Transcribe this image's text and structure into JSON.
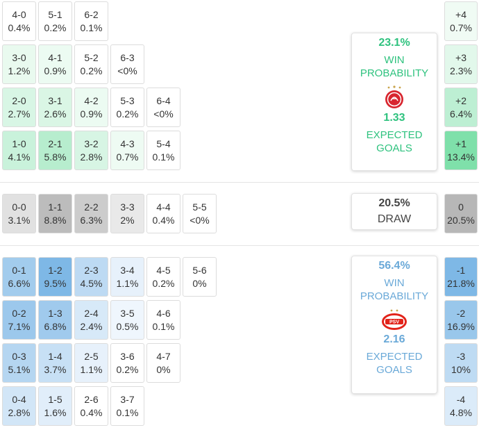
{
  "colors": {
    "home_accent": "#2ec27e",
    "away_accent": "#6aa9d8",
    "draw_accent": "#444444"
  },
  "home": {
    "win_pct": "23.1%",
    "win_label": "WIN PROBABILITY",
    "logo_icon": "olympiacos-crest-icon",
    "xg": "1.33",
    "xg_label": "EXPECTED GOALS"
  },
  "draw": {
    "pct": "20.5%",
    "label": "DRAW"
  },
  "away": {
    "win_pct": "56.4%",
    "win_label": "WIN PROBABILITY",
    "logo_icon": "psv-crest-icon",
    "xg": "2.16",
    "xg_label": "EXPECTED GOALS"
  },
  "home_rows": [
    [
      {
        "score": "4-0",
        "prob": "0.4%"
      },
      {
        "score": "5-1",
        "prob": "0.2%"
      },
      {
        "score": "6-2",
        "prob": "0.1%"
      }
    ],
    [
      {
        "score": "3-0",
        "prob": "1.2%"
      },
      {
        "score": "4-1",
        "prob": "0.9%"
      },
      {
        "score": "5-2",
        "prob": "0.2%"
      },
      {
        "score": "6-3",
        "prob": "<0%"
      }
    ],
    [
      {
        "score": "2-0",
        "prob": "2.7%"
      },
      {
        "score": "3-1",
        "prob": "2.6%"
      },
      {
        "score": "4-2",
        "prob": "0.9%"
      },
      {
        "score": "5-3",
        "prob": "0.2%"
      },
      {
        "score": "6-4",
        "prob": "<0%"
      }
    ],
    [
      {
        "score": "1-0",
        "prob": "4.1%"
      },
      {
        "score": "2-1",
        "prob": "5.8%"
      },
      {
        "score": "3-2",
        "prob": "2.8%"
      },
      {
        "score": "4-3",
        "prob": "0.7%"
      },
      {
        "score": "5-4",
        "prob": "0.1%"
      }
    ]
  ],
  "draw_row": [
    {
      "score": "0-0",
      "prob": "3.1%"
    },
    {
      "score": "1-1",
      "prob": "8.8%"
    },
    {
      "score": "2-2",
      "prob": "6.3%"
    },
    {
      "score": "3-3",
      "prob": "2%"
    },
    {
      "score": "4-4",
      "prob": "0.4%"
    },
    {
      "score": "5-5",
      "prob": "<0%"
    }
  ],
  "away_rows": [
    [
      {
        "score": "0-1",
        "prob": "6.6%"
      },
      {
        "score": "1-2",
        "prob": "9.5%"
      },
      {
        "score": "2-3",
        "prob": "4.5%"
      },
      {
        "score": "3-4",
        "prob": "1.1%"
      },
      {
        "score": "4-5",
        "prob": "0.2%"
      },
      {
        "score": "5-6",
        "prob": "0%"
      }
    ],
    [
      {
        "score": "0-2",
        "prob": "7.1%"
      },
      {
        "score": "1-3",
        "prob": "6.8%"
      },
      {
        "score": "2-4",
        "prob": "2.4%"
      },
      {
        "score": "3-5",
        "prob": "0.5%"
      },
      {
        "score": "4-6",
        "prob": "0.1%"
      }
    ],
    [
      {
        "score": "0-3",
        "prob": "5.1%"
      },
      {
        "score": "1-4",
        "prob": "3.7%"
      },
      {
        "score": "2-5",
        "prob": "1.1%"
      },
      {
        "score": "3-6",
        "prob": "0.2%"
      },
      {
        "score": "4-7",
        "prob": "0%"
      }
    ],
    [
      {
        "score": "0-4",
        "prob": "2.8%"
      },
      {
        "score": "1-5",
        "prob": "1.6%"
      },
      {
        "score": "2-6",
        "prob": "0.4%"
      },
      {
        "score": "3-7",
        "prob": "0.1%"
      }
    ]
  ],
  "margins": [
    {
      "label": "+4",
      "prob": "0.7%"
    },
    {
      "label": "+3",
      "prob": "2.3%"
    },
    {
      "label": "+2",
      "prob": "6.4%"
    },
    {
      "label": "+1",
      "prob": "13.4%"
    },
    {
      "label": "0",
      "prob": "20.5%"
    },
    {
      "label": "-1",
      "prob": "21.8%"
    },
    {
      "label": "-2",
      "prob": "16.9%"
    },
    {
      "label": "-3",
      "prob": "10%"
    },
    {
      "label": "-4",
      "prob": "4.8%"
    }
  ]
}
